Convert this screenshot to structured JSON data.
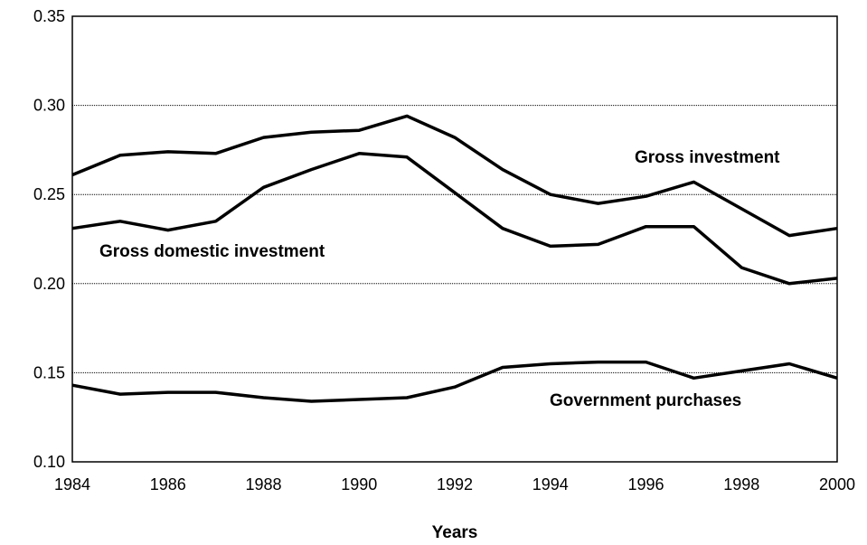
{
  "chart_data": {
    "type": "line",
    "title": "",
    "xlabel": "Years",
    "ylabel": "",
    "xlim": [
      1984,
      2000
    ],
    "ylim": [
      0.1,
      0.35
    ],
    "x_ticks": [
      "1984",
      "1986",
      "1988",
      "1990",
      "1992",
      "1994",
      "1996",
      "1998",
      "2000"
    ],
    "y_ticks": [
      "0.10",
      "0.15",
      "0.20",
      "0.25",
      "0.30",
      "0.35"
    ],
    "grid": "horizontal dotted",
    "legend": "none",
    "x": [
      1984,
      1985,
      1986,
      1987,
      1988,
      1989,
      1990,
      1991,
      1992,
      1993,
      1994,
      1995,
      1996,
      1997,
      1998,
      1999,
      2000
    ],
    "series": [
      {
        "name": "Gross investment",
        "values": [
          0.261,
          0.272,
          0.274,
          0.273,
          0.282,
          0.285,
          0.286,
          0.294,
          0.282,
          0.264,
          0.25,
          0.245,
          0.249,
          0.257,
          0.242,
          0.227,
          0.231
        ]
      },
      {
        "name": "Gross domestic investment",
        "values": [
          0.231,
          0.235,
          0.23,
          0.235,
          0.254,
          0.264,
          0.273,
          0.271,
          0.251,
          0.231,
          0.221,
          0.222,
          0.232,
          0.232,
          0.209,
          0.2,
          0.203
        ]
      },
      {
        "name": "Government purchases",
        "values": [
          0.143,
          0.138,
          0.139,
          0.139,
          0.136,
          0.134,
          0.135,
          0.136,
          0.142,
          0.153,
          0.155,
          0.156,
          0.156,
          0.147,
          0.151,
          0.155,
          0.147
        ]
      }
    ]
  },
  "series_labels": {
    "gross_investment": "Gross investment",
    "gross_domestic_investment": "Gross domestic investment",
    "government_purchases": "Government purchases"
  },
  "colors": {
    "line": "#000000",
    "grid": "#000000",
    "frame": "#000000"
  }
}
